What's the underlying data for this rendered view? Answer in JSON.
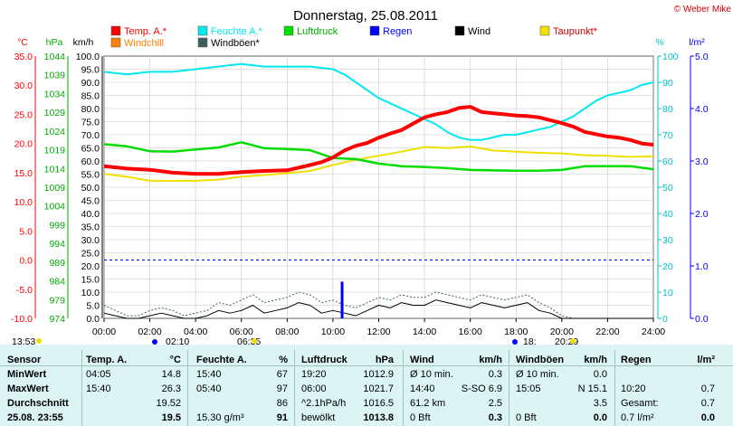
{
  "title": "Donnerstag, 25.08.2011",
  "credit": "© Weber Mike",
  "legend": [
    {
      "label": "Temp. A.*",
      "color": "#ff0000"
    },
    {
      "label": "Feuchte A.*",
      "color": "#00e8f0"
    },
    {
      "label": "Luftdruck",
      "color": "#00dd00"
    },
    {
      "label": "Regen",
      "color": "#0000ff"
    },
    {
      "label": "Wind",
      "color": "#000000"
    },
    {
      "label": "Taupunkt*",
      "color": "#f0e000"
    },
    {
      "label": "Windchill",
      "color": "#ff8000"
    },
    {
      "label": "Windböen*",
      "color": "#406060"
    }
  ],
  "chart_data": {
    "type": "line",
    "title": "Donnerstag, 25.08.2011",
    "x_ticks": [
      "00:00",
      "02:00",
      "04:00",
      "06:00",
      "08:00",
      "10:00",
      "12:00",
      "14:00",
      "16:00",
      "18:00",
      "20:00",
      "22:00",
      "24:00"
    ],
    "x_range_hours": [
      0,
      24
    ],
    "axes": {
      "temp": {
        "unit": "°C",
        "color": "#ff0000",
        "ticks": [
          "35.0",
          "30.0",
          "25.0",
          "20.0",
          "15.0",
          "10.0",
          "5.0",
          "0.0",
          "-5.0",
          "-10.0"
        ],
        "range": [
          -10,
          35
        ]
      },
      "pressure": {
        "unit": "hPa",
        "color": "#00cc00",
        "ticks": [
          "1044",
          "1039",
          "1034",
          "1029",
          "1024",
          "1019",
          "1014",
          "1009",
          "1004",
          "999",
          "994",
          "989",
          "984",
          "979",
          "974"
        ],
        "range": [
          974,
          1044
        ]
      },
      "wind": {
        "unit": "km/h",
        "color": "#000000",
        "ticks": [
          "100.0",
          "95.0",
          "90.0",
          "85.0",
          "80.0",
          "75.0",
          "70.0",
          "65.0",
          "60.0",
          "55.0",
          "50.0",
          "45.0",
          "40.0",
          "35.0",
          "30.0",
          "25.0",
          "20.0",
          "15.0",
          "10.0",
          "5.0",
          "0.0"
        ],
        "range": [
          0,
          100
        ]
      },
      "humidity": {
        "unit": "%",
        "color": "#00d0d8",
        "ticks": [
          "100",
          "90",
          "80",
          "70",
          "60",
          "50",
          "40",
          "30",
          "20",
          "10",
          "0"
        ],
        "range": [
          0,
          100
        ]
      },
      "rain": {
        "unit": "l/m²",
        "color": "#0000ff",
        "ticks": [
          "5.0",
          "4.0",
          "3.0",
          "2.0",
          "1.0",
          "0.0"
        ],
        "range": [
          0,
          5
        ]
      }
    },
    "series": [
      {
        "name": "Temp. A.*",
        "color": "#ff0000",
        "axis": "temp",
        "x": [
          0,
          1,
          2,
          3,
          4,
          5,
          6,
          7,
          8,
          9,
          9.5,
          10,
          10.5,
          11,
          11.5,
          12,
          12.5,
          13,
          13.5,
          14,
          14.5,
          15,
          15.5,
          16,
          16.5,
          17,
          17.5,
          18,
          18.5,
          19,
          19.5,
          20,
          20.5,
          21,
          21.5,
          22,
          22.5,
          23,
          23.5,
          24
        ],
        "y": [
          16.1,
          15.7,
          15.5,
          15.0,
          14.8,
          14.8,
          15.1,
          15.3,
          15.4,
          16.3,
          16.8,
          17.6,
          18.8,
          19.6,
          20.1,
          21.0,
          21.7,
          22.3,
          23.4,
          24.5,
          25.0,
          25.4,
          26.1,
          26.3,
          25.4,
          25.2,
          25.0,
          24.8,
          24.7,
          24.5,
          24.0,
          23.5,
          22.9,
          22.0,
          21.6,
          21.2,
          21.0,
          20.6,
          20.0,
          19.8
        ]
      },
      {
        "name": "Feuchte A.*",
        "color": "#00e8f0",
        "axis": "humidity",
        "x": [
          0,
          1,
          2,
          3,
          4,
          5,
          6,
          7,
          8,
          9,
          10,
          10.5,
          11,
          11.5,
          12,
          12.5,
          13,
          13.5,
          14,
          14.5,
          15,
          15.5,
          16,
          16.5,
          17,
          17.5,
          18,
          18.5,
          19,
          19.5,
          20,
          20.5,
          21,
          21.5,
          22,
          22.5,
          23,
          23.5,
          24
        ],
        "y": [
          94,
          93,
          94,
          94,
          95,
          96,
          97,
          96,
          96,
          96,
          95,
          93,
          90,
          87,
          84,
          82,
          80,
          78,
          76,
          74,
          71,
          69,
          68,
          68,
          69,
          70,
          70,
          71,
          72,
          73,
          75,
          77,
          80,
          83,
          85,
          86,
          87,
          89,
          90
        ]
      },
      {
        "name": "Luftdruck",
        "color": "#00dd00",
        "axis": "pressure",
        "x": [
          0,
          1,
          2,
          3,
          4,
          5,
          6,
          7,
          8,
          9,
          10,
          11,
          12,
          13,
          14,
          15,
          16,
          17,
          18,
          19,
          20,
          21,
          22,
          23,
          24
        ],
        "y": [
          1020.5,
          1019.9,
          1018.6,
          1018.5,
          1019.1,
          1019.6,
          1021.0,
          1019.4,
          1019.2,
          1018.9,
          1016.8,
          1016.5,
          1015.3,
          1014.6,
          1014.4,
          1014.1,
          1013.6,
          1013.5,
          1013.4,
          1013.4,
          1013.6,
          1014.6,
          1014.6,
          1014.6,
          1013.8
        ]
      },
      {
        "name": "Taupunkt*",
        "color": "#f0e000",
        "axis": "temp",
        "x": [
          0,
          1,
          2,
          3,
          4,
          5,
          6,
          7,
          8,
          9,
          10,
          11,
          12,
          13,
          14,
          15,
          16,
          17,
          18,
          19,
          20,
          21,
          22,
          23,
          24
        ],
        "y": [
          14.8,
          14.3,
          13.6,
          13.6,
          13.6,
          13.8,
          14.3,
          14.6,
          14.9,
          15.3,
          16.3,
          17.2,
          17.9,
          18.6,
          19.4,
          19.2,
          19.5,
          18.8,
          18.6,
          18.4,
          18.3,
          18.0,
          17.9,
          17.7,
          17.8
        ]
      },
      {
        "name": "Wind",
        "color": "#000000",
        "axis": "wind",
        "x": [
          0,
          0.5,
          1,
          1.5,
          2,
          2.5,
          3,
          3.5,
          4,
          4.5,
          5,
          5.5,
          6,
          6.5,
          7,
          7.5,
          8,
          8.5,
          9,
          9.5,
          10,
          10.5,
          11,
          11.5,
          12,
          12.5,
          13,
          13.5,
          14,
          14.5,
          15,
          15.5,
          16,
          16.5,
          17,
          17.5,
          18,
          18.5,
          19,
          19.5,
          20,
          20.5,
          21,
          21.5,
          22,
          22.5,
          23,
          23.5,
          24
        ],
        "y": [
          2,
          1,
          0,
          0,
          1,
          2,
          1,
          0,
          0,
          1,
          3,
          2,
          3,
          5,
          2,
          3,
          4,
          6,
          5,
          2,
          3,
          2,
          1,
          3,
          5,
          4,
          6,
          5,
          5,
          7,
          6,
          5,
          4,
          6,
          5,
          4,
          5,
          6,
          3,
          2,
          0,
          0,
          0,
          0,
          0,
          0,
          0,
          0,
          0
        ]
      },
      {
        "name": "Windböen*",
        "color": "#406060",
        "axis": "wind",
        "x": [
          0,
          0.5,
          1,
          1.5,
          2,
          2.5,
          3,
          3.5,
          4,
          4.5,
          5,
          5.5,
          6,
          6.5,
          7,
          7.5,
          8,
          8.5,
          9,
          9.5,
          10,
          10.5,
          11,
          11.5,
          12,
          12.5,
          13,
          13.5,
          14,
          14.5,
          15,
          15.5,
          16,
          16.5,
          17,
          17.5,
          18,
          18.5,
          19,
          19.5,
          20,
          20.5,
          21,
          21.5,
          22,
          22.5,
          23,
          23.5,
          24
        ],
        "y": [
          5,
          3,
          1,
          1,
          3,
          4,
          3,
          1,
          2,
          3,
          6,
          5,
          7,
          9,
          6,
          7,
          8,
          10,
          9,
          6,
          7,
          5,
          4,
          6,
          8,
          7,
          9,
          8,
          8,
          10,
          9,
          8,
          7,
          9,
          8,
          7,
          8,
          9,
          6,
          4,
          1,
          0,
          0,
          0,
          0,
          0,
          0,
          0,
          0
        ]
      },
      {
        "name": "Regen",
        "color": "#0000ff",
        "axis": "rain",
        "bars": [
          {
            "x": 10.4,
            "y": 0.7
          }
        ]
      }
    ],
    "reference_lines": [
      {
        "axis": "temp",
        "y": 0,
        "style": "dashed",
        "color": "#0000ff"
      }
    ],
    "markers": {
      "below": [
        "13:53",
        "02:10",
        "06:35",
        "18:",
        "20:29"
      ]
    }
  },
  "table": {
    "headers": {
      "sensor": "Sensor",
      "temp": "Temp. A.",
      "temp_unit": "°C",
      "hum": "Feuchte A.",
      "hum_unit": "%",
      "press": "Luftdruck",
      "press_unit": "hPa",
      "wind": "Wind",
      "wind_unit": "km/h",
      "gust": "Windböen",
      "gust_unit": "km/h",
      "rain": "Regen",
      "rain_unit": "l/m²"
    },
    "rows": [
      {
        "label": "MinWert",
        "t_time": "04:05",
        "t_val": "14.8",
        "h_time": "15:40",
        "h_val": "67",
        "p_time": "19:20",
        "p_val": "1012.9",
        "w_time": "Ø 10 min.",
        "w_val": "0.3",
        "g_time": "Ø 10 min.",
        "g_val": "0.0",
        "r_label": "",
        "r_val": ""
      },
      {
        "label": "MaxWert",
        "t_time": "15:40",
        "t_val": "26.3",
        "h_time": "05:40",
        "h_val": "97",
        "p_time": "06:00",
        "p_val": "1021.7",
        "w_time": "14:40",
        "w_val": "S-SO 6.9",
        "g_time": "15:05",
        "g_val": "N 15.1",
        "r_label": "10:20",
        "r_val": "0.7"
      },
      {
        "label": "Durchschnitt",
        "t_time": "",
        "t_val": "19.52",
        "h_time": "",
        "h_val": "86",
        "p_time": "^2.1hPa/h",
        "p_val": "1016.5",
        "w_time": "61.2 km",
        "w_val": "2.5",
        "g_time": "",
        "g_val": "3.5",
        "r_label": "Gesamt:",
        "r_val": "0.7"
      },
      {
        "label": "25.08. 23:55",
        "t_time": "",
        "t_val": "19.5",
        "h_time": "15.30 g/m³",
        "h_val": "91",
        "p_time": "bewölkt",
        "p_val": "1013.8",
        "w_time": "0 Bft",
        "w_val": "0.3",
        "g_time": "0 Bft",
        "g_val": "0.0",
        "r_label": "0.7 l/m²",
        "r_val": "0.0"
      }
    ]
  }
}
